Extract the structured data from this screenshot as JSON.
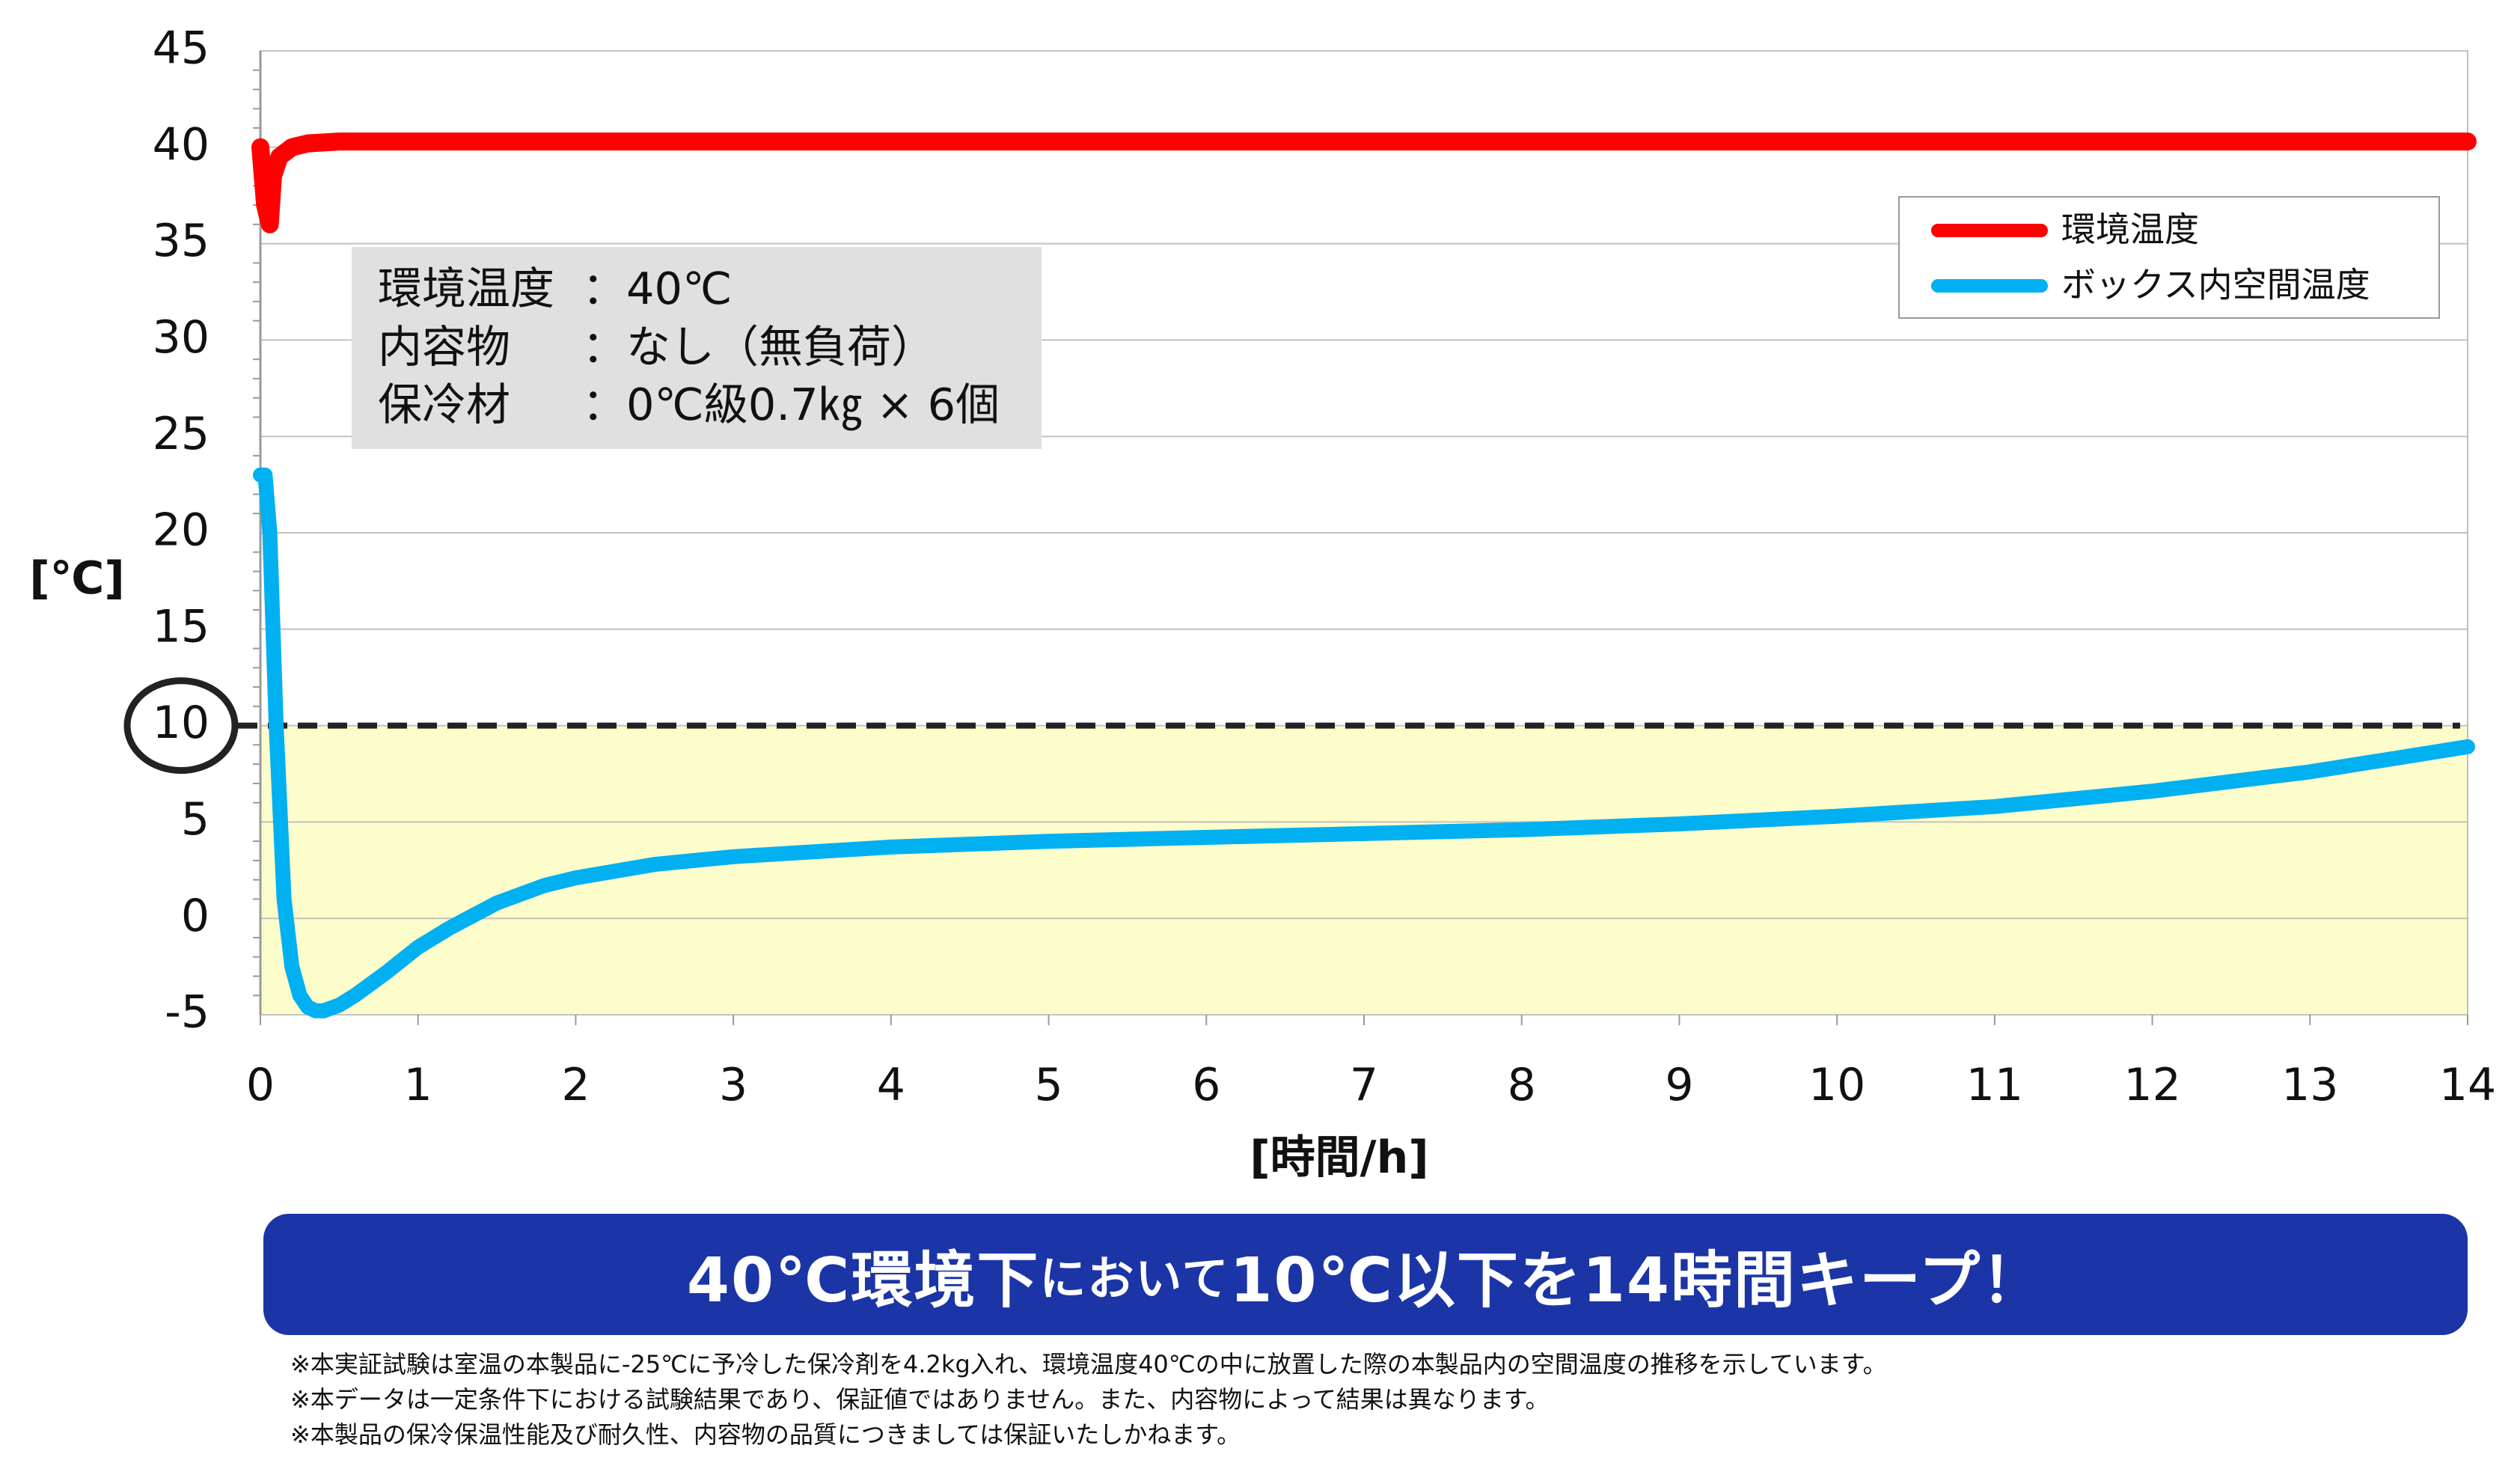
{
  "chart_data": {
    "type": "line",
    "title": "",
    "xlabel": "[時間/h]",
    "ylabel": "[℃]",
    "xlim": [
      0,
      14
    ],
    "ylim": [
      -5,
      45
    ],
    "x_ticks": [
      0,
      1,
      2,
      3,
      4,
      5,
      6,
      7,
      8,
      9,
      10,
      11,
      12,
      13,
      14
    ],
    "y_ticks": [
      -5,
      0,
      5,
      10,
      15,
      20,
      25,
      30,
      35,
      40,
      45
    ],
    "grid": true,
    "threshold": {
      "value": 10,
      "style": "dashed",
      "highlighted_tick": "10",
      "fill_below": "#fdfccb"
    },
    "legend_position": "top-right",
    "series": [
      {
        "name": "環境温度",
        "color": "#ff0000",
        "x": [
          0.0,
          0.03,
          0.06,
          0.08,
          0.12,
          0.2,
          0.3,
          0.5,
          1,
          2,
          4,
          6,
          8,
          10,
          12,
          14
        ],
        "y": [
          40.0,
          37.0,
          36.0,
          38.5,
          39.5,
          40.0,
          40.2,
          40.3,
          40.3,
          40.3,
          40.3,
          40.3,
          40.3,
          40.3,
          40.3,
          40.3
        ]
      },
      {
        "name": "ボックス内空間温度",
        "color": "#00b0f0",
        "x": [
          0.0,
          0.03,
          0.06,
          0.1,
          0.15,
          0.2,
          0.25,
          0.3,
          0.35,
          0.4,
          0.5,
          0.6,
          0.8,
          1.0,
          1.2,
          1.5,
          1.8,
          2.0,
          2.5,
          3.0,
          4.0,
          5.0,
          6.0,
          7.0,
          8.0,
          9.0,
          10.0,
          11.0,
          12.0,
          13.0,
          14.0
        ],
        "y": [
          23.0,
          23.0,
          20.0,
          10.0,
          1.0,
          -2.5,
          -4.0,
          -4.6,
          -4.8,
          -4.8,
          -4.5,
          -4.0,
          -2.8,
          -1.5,
          -0.5,
          0.8,
          1.7,
          2.1,
          2.8,
          3.2,
          3.7,
          4.0,
          4.2,
          4.4,
          4.6,
          4.9,
          5.3,
          5.8,
          6.6,
          7.6,
          8.9
        ]
      }
    ],
    "info_box": {
      "rows": [
        {
          "label": "環境温度",
          "value": "：40℃"
        },
        {
          "label": "内容物",
          "value": "：なし（無負荷）"
        },
        {
          "label": "保冷材",
          "value": "：0℃級0.7㎏ × 6個"
        }
      ]
    }
  },
  "banner": {
    "part1": "40℃環境下",
    "part2": "において",
    "part3": "10℃以下を14時間キープ！"
  },
  "notes": [
    "※本実証試験は室温の本製品に-25℃に予冷した保冷剤を4.2kg入れ、環境温度40℃の中に放置した際の本製品内の空間温度の推移を示しています。",
    "※本データは一定条件下における試験結果であり、保証値ではありません。また、内容物によって結果は異なります。",
    "※本製品の保冷保温性能及び耐久性、内容物の品質につきましては保証いたしかねます。"
  ]
}
